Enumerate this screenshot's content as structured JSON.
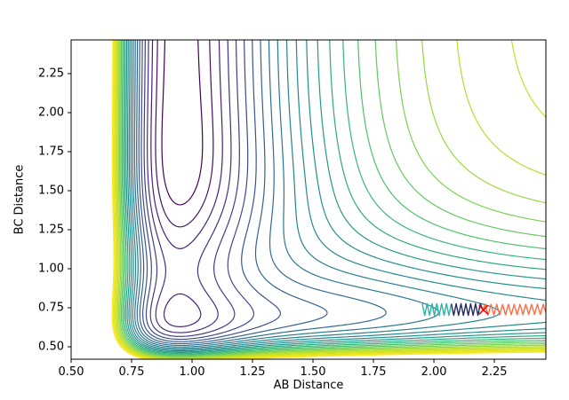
{
  "figure": {
    "background": "#ffffff"
  },
  "chart_data": {
    "type": "contour",
    "title": "",
    "xlabel": "AB Distance",
    "ylabel": "BC Distance",
    "xlim": [
      0.5,
      2.463
    ],
    "ylim": [
      0.4205,
      2.466
    ],
    "grid": false,
    "legend": null,
    "xticks": {
      "values": [
        0.5,
        0.75,
        1.0,
        1.25,
        1.5,
        1.75,
        2.0,
        2.25
      ],
      "labels": [
        "0.50",
        "0.75",
        "1.00",
        "1.25",
        "1.50",
        "1.75",
        "2.00",
        "2.25"
      ]
    },
    "yticks": {
      "values": [
        0.5,
        0.75,
        1.0,
        1.25,
        1.5,
        1.75,
        2.0,
        2.25
      ],
      "labels": [
        "0.50",
        "0.75",
        "1.00",
        "1.25",
        "1.50",
        "1.75",
        "2.00",
        "2.25"
      ]
    },
    "surface": {
      "description": "Potential energy surface V(AB,BC): Morse potential in AB bond plus Morse potential in BC bond plus Gaussian repulsive coupling at the channel corner; vertical valley near AB=0.95, horizontal valley near BC=0.72, steep repulsive walls at small distances, dissociation plateau at top-right",
      "morse_ab": {
        "D": 1.15,
        "a": 2.6,
        "re": 0.95
      },
      "morse_bc": {
        "D": 0.55,
        "a": 3.0,
        "re": 0.72
      },
      "corner_bump": {
        "B": 0.65,
        "cx": 0.95,
        "cy": 0.74,
        "sigma": 0.4
      }
    },
    "contours": {
      "level_min": -1.12,
      "level_step": 0.05,
      "level_count": 26,
      "colormap": "viridis",
      "line_width": 1.2
    },
    "colormap_stops": [
      {
        "t": 0.0,
        "c": "#440154"
      },
      {
        "t": 0.1,
        "c": "#482878"
      },
      {
        "t": 0.2,
        "c": "#3e4989"
      },
      {
        "t": 0.3,
        "c": "#31688e"
      },
      {
        "t": 0.4,
        "c": "#26828e"
      },
      {
        "t": 0.5,
        "c": "#21918c"
      },
      {
        "t": 0.6,
        "c": "#35b779"
      },
      {
        "t": 0.7,
        "c": "#6ece58"
      },
      {
        "t": 0.8,
        "c": "#b5de2b"
      },
      {
        "t": 0.9,
        "c": "#dfe318"
      },
      {
        "t": 1.0,
        "c": "#fde725"
      }
    ],
    "trajectory": {
      "description": "Optimization path zigzagging along the BC=0.74 valley toward the right edge, with a red x marker at the transition point",
      "segments": [
        {
          "name": "segment-teal",
          "color": "#2ab5a5",
          "points": [
            [
              1.952,
              0.776
            ],
            [
              1.962,
              0.701
            ],
            [
              1.972,
              0.776
            ],
            [
              1.982,
              0.701
            ],
            [
              1.992,
              0.776
            ],
            [
              2.002,
              0.701
            ],
            [
              2.012,
              0.776
            ],
            [
              2.022,
              0.701
            ],
            [
              2.032,
              0.776
            ],
            [
              2.042,
              0.701
            ],
            [
              2.052,
              0.776
            ],
            [
              2.062,
              0.701
            ],
            [
              2.072,
              0.776
            ]
          ]
        },
        {
          "name": "segment-dark",
          "color": "#232c63",
          "points": [
            [
              2.072,
              0.776
            ],
            [
              2.082,
              0.701
            ],
            [
              2.092,
              0.776
            ],
            [
              2.102,
              0.701
            ],
            [
              2.112,
              0.776
            ],
            [
              2.122,
              0.701
            ],
            [
              2.132,
              0.776
            ],
            [
              2.142,
              0.701
            ],
            [
              2.152,
              0.776
            ],
            [
              2.162,
              0.701
            ],
            [
              2.172,
              0.776
            ],
            [
              2.182,
              0.701
            ],
            [
              2.192,
              0.776
            ],
            [
              2.202,
              0.737
            ]
          ]
        },
        {
          "name": "segment-orange",
          "color": "#ff6d45",
          "points": [
            [
              2.202,
              0.737
            ],
            [
              2.212,
              0.772
            ],
            [
              2.224,
              0.703
            ],
            [
              2.236,
              0.772
            ],
            [
              2.248,
              0.704
            ],
            [
              2.26,
              0.772
            ],
            [
              2.272,
              0.705
            ],
            [
              2.284,
              0.772
            ],
            [
              2.296,
              0.705
            ],
            [
              2.308,
              0.772
            ],
            [
              2.32,
              0.706
            ],
            [
              2.332,
              0.772
            ],
            [
              2.344,
              0.706
            ],
            [
              2.356,
              0.772
            ],
            [
              2.368,
              0.706
            ],
            [
              2.38,
              0.772
            ],
            [
              2.392,
              0.707
            ],
            [
              2.404,
              0.772
            ],
            [
              2.416,
              0.707
            ],
            [
              2.428,
              0.772
            ],
            [
              2.44,
              0.707
            ],
            [
              2.452,
              0.772
            ],
            [
              2.463,
              0.72
            ]
          ]
        }
      ],
      "marker": {
        "symbol": "x",
        "color": "#ff0000",
        "x": 2.205,
        "y": 0.737,
        "size": 5
      }
    }
  }
}
